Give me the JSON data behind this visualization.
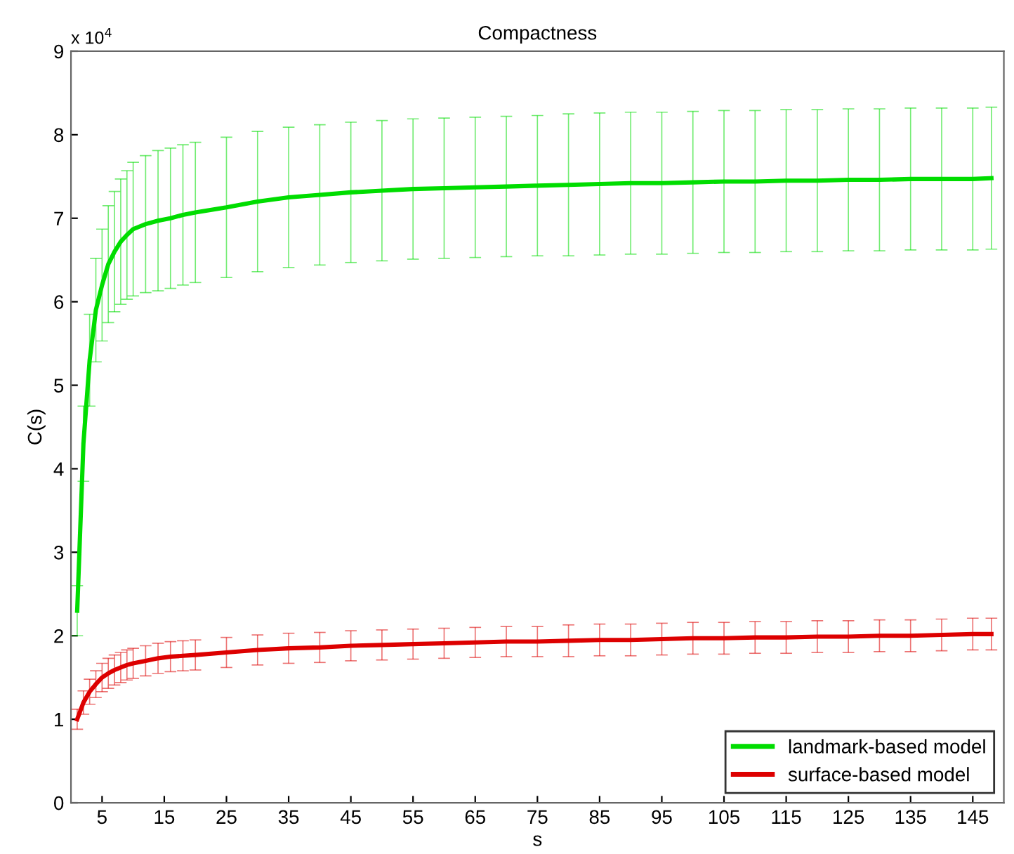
{
  "chart_data": {
    "type": "line",
    "title": "Compactness",
    "xlabel": "s",
    "ylabel": "C(s)",
    "annotations": [
      "x 10$^{4}$"
    ],
    "x": [
      1,
      2,
      3,
      4,
      5,
      6,
      7,
      8,
      9,
      10,
      12,
      14,
      16,
      18,
      20,
      25,
      30,
      35,
      40,
      45,
      50,
      55,
      60,
      65,
      70,
      75,
      80,
      85,
      90,
      95,
      100,
      105,
      110,
      115,
      120,
      125,
      130,
      135,
      140,
      145,
      148
    ],
    "series": [
      {
        "name": "landmark-based model",
        "color": "#00dd00",
        "values": [
          2.3,
          4.3,
          5.3,
          5.9,
          6.2,
          6.45,
          6.6,
          6.72,
          6.8,
          6.87,
          6.93,
          6.97,
          7.0,
          7.04,
          7.07,
          7.13,
          7.2,
          7.25,
          7.28,
          7.31,
          7.33,
          7.35,
          7.36,
          7.37,
          7.38,
          7.39,
          7.4,
          7.41,
          7.42,
          7.42,
          7.43,
          7.44,
          7.44,
          7.45,
          7.45,
          7.46,
          7.46,
          7.47,
          7.47,
          7.47,
          7.48
        ],
        "errors": [
          0.3,
          0.45,
          0.55,
          0.62,
          0.67,
          0.7,
          0.72,
          0.75,
          0.77,
          0.8,
          0.82,
          0.84,
          0.84,
          0.84,
          0.84,
          0.84,
          0.84,
          0.84,
          0.84,
          0.84,
          0.84,
          0.84,
          0.84,
          0.84,
          0.84,
          0.84,
          0.85,
          0.85,
          0.85,
          0.85,
          0.85,
          0.85,
          0.85,
          0.85,
          0.85,
          0.85,
          0.85,
          0.85,
          0.85,
          0.85,
          0.85
        ]
      },
      {
        "name": "surface-based model",
        "color": "#dd0000",
        "values": [
          1.0,
          1.2,
          1.33,
          1.42,
          1.5,
          1.55,
          1.59,
          1.62,
          1.65,
          1.67,
          1.7,
          1.73,
          1.75,
          1.76,
          1.77,
          1.8,
          1.83,
          1.85,
          1.86,
          1.88,
          1.89,
          1.9,
          1.91,
          1.92,
          1.93,
          1.93,
          1.94,
          1.95,
          1.95,
          1.96,
          1.97,
          1.97,
          1.98,
          1.98,
          1.99,
          1.99,
          2.0,
          2.0,
          2.01,
          2.02,
          2.02
        ],
        "errors": [
          0.12,
          0.14,
          0.15,
          0.16,
          0.17,
          0.18,
          0.18,
          0.18,
          0.18,
          0.18,
          0.18,
          0.18,
          0.18,
          0.18,
          0.18,
          0.18,
          0.18,
          0.18,
          0.18,
          0.18,
          0.18,
          0.18,
          0.18,
          0.18,
          0.18,
          0.18,
          0.19,
          0.19,
          0.19,
          0.19,
          0.19,
          0.19,
          0.19,
          0.19,
          0.19,
          0.19,
          0.19,
          0.19,
          0.19,
          0.19,
          0.19
        ]
      }
    ],
    "xlim": [
      0,
      150
    ],
    "xticks": [
      5,
      15,
      25,
      35,
      45,
      55,
      65,
      75,
      85,
      95,
      105,
      115,
      125,
      135,
      145
    ],
    "ylim": [
      0,
      9
    ],
    "yticks": [
      0,
      1,
      2,
      3,
      4,
      5,
      6,
      7,
      8,
      9
    ],
    "grid": false,
    "legend": "bottom right",
    "marker": "none",
    "line_style": "solid"
  }
}
